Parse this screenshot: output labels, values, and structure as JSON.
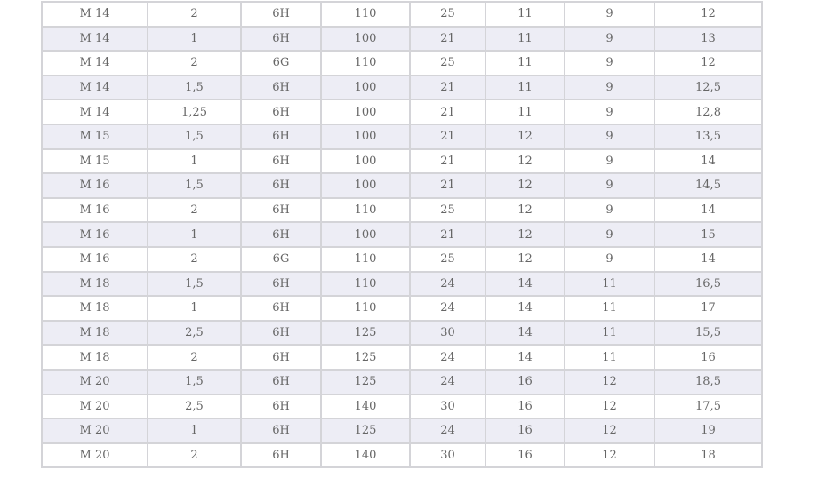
{
  "table": {
    "rows": [
      [
        "M 14",
        "2",
        "6H",
        "110",
        "25",
        "11",
        "9",
        "12"
      ],
      [
        "M 14",
        "1",
        "6H",
        "100",
        "21",
        "11",
        "9",
        "13"
      ],
      [
        "M 14",
        "2",
        "6G",
        "110",
        "25",
        "11",
        "9",
        "12"
      ],
      [
        "M 14",
        "1,5",
        "6H",
        "100",
        "21",
        "11",
        "9",
        "12,5"
      ],
      [
        "M 14",
        "1,25",
        "6H",
        "100",
        "21",
        "11",
        "9",
        "12,8"
      ],
      [
        "M 15",
        "1,5",
        "6H",
        "100",
        "21",
        "12",
        "9",
        "13,5"
      ],
      [
        "M 15",
        "1",
        "6H",
        "100",
        "21",
        "12",
        "9",
        "14"
      ],
      [
        "M 16",
        "1,5",
        "6H",
        "100",
        "21",
        "12",
        "9",
        "14,5"
      ],
      [
        "M 16",
        "2",
        "6H",
        "110",
        "25",
        "12",
        "9",
        "14"
      ],
      [
        "M 16",
        "1",
        "6H",
        "100",
        "21",
        "12",
        "9",
        "15"
      ],
      [
        "M 16",
        "2",
        "6G",
        "110",
        "25",
        "12",
        "9",
        "14"
      ],
      [
        "M 18",
        "1,5",
        "6H",
        "110",
        "24",
        "14",
        "11",
        "16,5"
      ],
      [
        "M 18",
        "1",
        "6H",
        "110",
        "24",
        "14",
        "11",
        "17"
      ],
      [
        "M 18",
        "2,5",
        "6H",
        "125",
        "30",
        "14",
        "11",
        "15,5"
      ],
      [
        "M 18",
        "2",
        "6H",
        "125",
        "24",
        "14",
        "11",
        "16"
      ],
      [
        "M 20",
        "1,5",
        "6H",
        "125",
        "24",
        "16",
        "12",
        "18,5"
      ],
      [
        "M 20",
        "2,5",
        "6H",
        "140",
        "30",
        "16",
        "12",
        "17,5"
      ],
      [
        "M 20",
        "1",
        "6H",
        "125",
        "24",
        "16",
        "12",
        "19"
      ],
      [
        "M 20",
        "2",
        "6H",
        "140",
        "30",
        "16",
        "12",
        "18"
      ]
    ]
  },
  "colors": {
    "stripe": "#ededf5",
    "border": "#d4d4d8",
    "text": "#666666"
  }
}
